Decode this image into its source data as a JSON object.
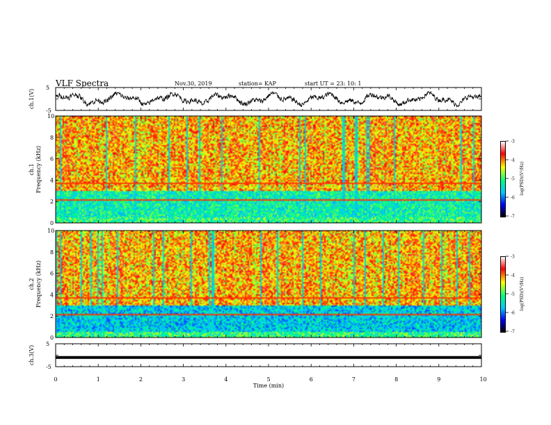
{
  "header": {
    "title": "VLF Spectra",
    "date": "Nov.30, 2019",
    "station": "station= KAP",
    "start": "start  UT  =   23: 10: 1"
  },
  "chart_data": [
    {
      "type": "line",
      "name": "waveform-ch1",
      "ylabel": "ch.1(V)",
      "ylim": [
        -5,
        5
      ],
      "yticks": [
        "5",
        "-5"
      ],
      "xlim": [
        0,
        10
      ]
    },
    {
      "type": "heatmap",
      "name": "spectrogram-ch1",
      "ylabel": "ch.1",
      "ylabel2": "Frequency  (kHz)",
      "ylim": [
        0,
        10
      ],
      "yticks": [
        "0",
        "2",
        "4",
        "6",
        "8",
        "10"
      ],
      "xlim": [
        0,
        10
      ],
      "colorbar": {
        "label": "log(PSD)(V²/Hz)",
        "ticks": [
          "-3",
          "-4",
          "-5",
          "-6",
          "-7"
        ],
        "range": [
          -7,
          -3
        ]
      }
    },
    {
      "type": "heatmap",
      "name": "spectrogram-ch2",
      "ylabel": "ch.2",
      "ylabel2": "Frequency  (kHz)",
      "ylim": [
        0,
        10
      ],
      "yticks": [
        "0",
        "2",
        "4",
        "6",
        "8",
        "10"
      ],
      "xlim": [
        0,
        10
      ],
      "colorbar": {
        "label": "log(PSD)(V²/Hz)",
        "ticks": [
          "-3",
          "-4",
          "-5",
          "-6",
          "-7"
        ],
        "range": [
          -7,
          -3
        ]
      }
    },
    {
      "type": "line",
      "name": "waveform-ch3",
      "ylabel": "ch.3(V)",
      "ylim": [
        -5,
        5
      ],
      "yticks": [
        "5",
        "-5"
      ],
      "xlim": [
        0,
        10
      ],
      "level": -1
    }
  ],
  "xaxis": {
    "label": "Time  (min)",
    "ticks": [
      "0",
      "1",
      "2",
      "3",
      "4",
      "5",
      "6",
      "7",
      "8",
      "9",
      "10"
    ]
  },
  "colors": {
    "scale": [
      "#000000",
      "#0000ff",
      "#00c8ff",
      "#00ff80",
      "#ffff00",
      "#ff0000",
      "#ffffff"
    ]
  }
}
